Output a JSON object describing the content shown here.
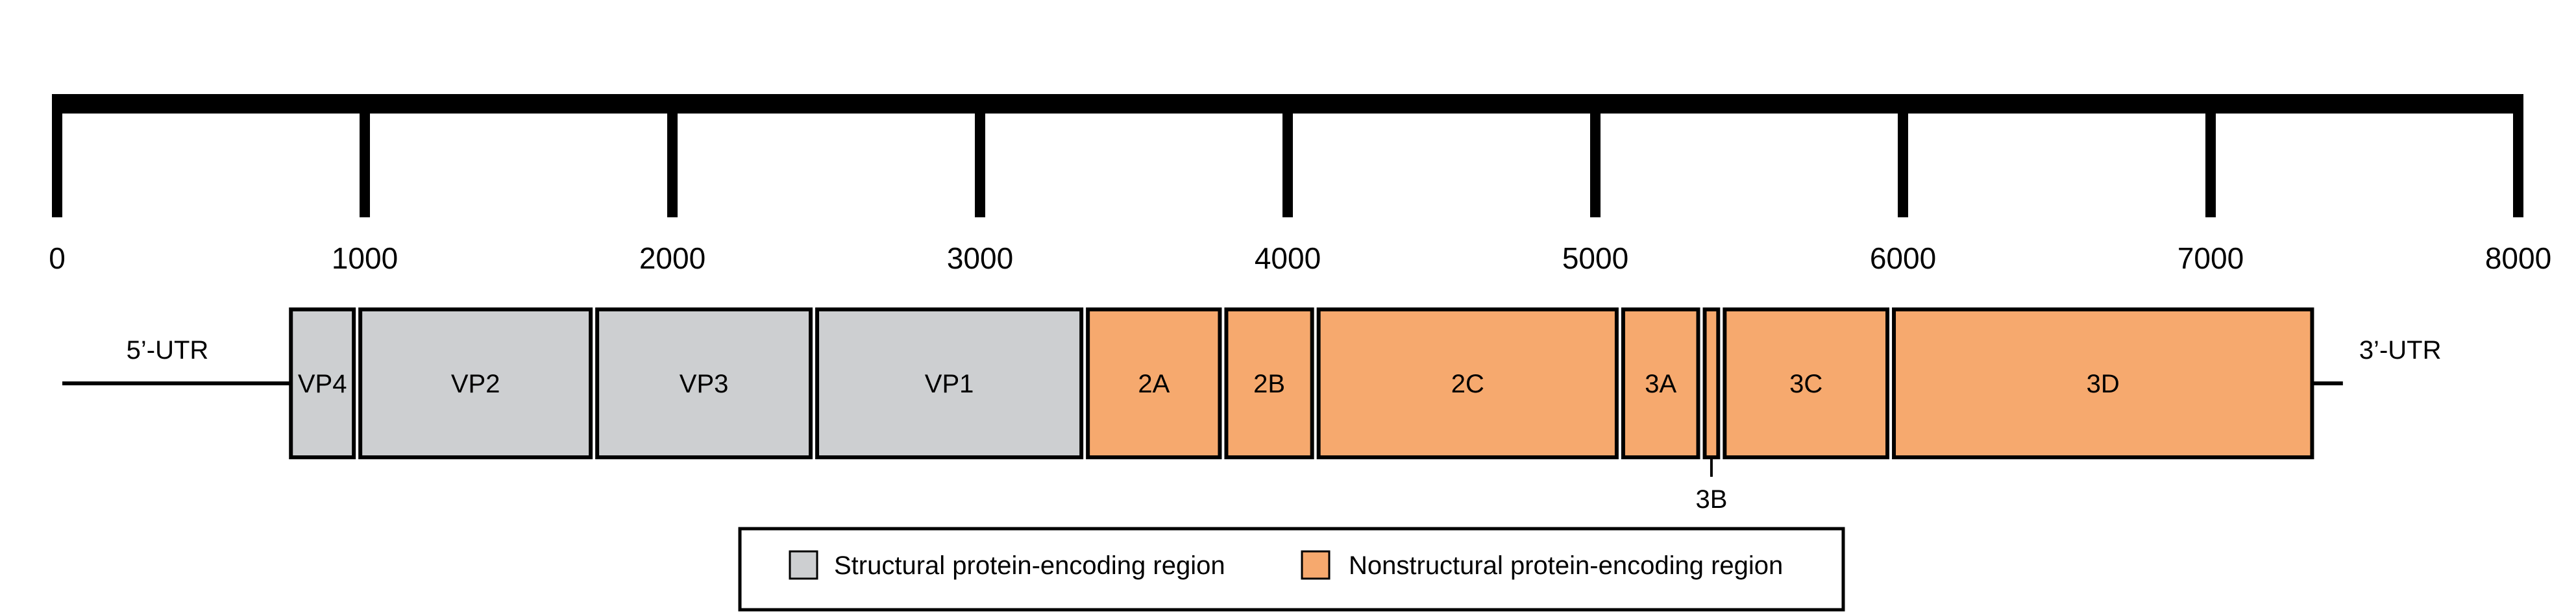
{
  "ruler": {
    "min": 0,
    "max": 8000,
    "step": 1000,
    "ticks": [
      "0",
      "1000",
      "2000",
      "3000",
      "4000",
      "5000",
      "6000",
      "7000",
      "8000"
    ]
  },
  "utr5": {
    "label": "5’-UTR",
    "start": 0,
    "end": 760
  },
  "utr3": {
    "label": "3’-UTR",
    "start": 7330,
    "end": 7430
  },
  "segments": [
    {
      "name": "VP4",
      "start": 760,
      "end": 975,
      "type": "structural"
    },
    {
      "name": "VP2",
      "start": 975,
      "end": 1745,
      "type": "structural"
    },
    {
      "name": "VP3",
      "start": 1745,
      "end": 2460,
      "type": "structural"
    },
    {
      "name": "VP1",
      "start": 2460,
      "end": 3340,
      "type": "structural"
    },
    {
      "name": "2A",
      "start": 3340,
      "end": 3790,
      "type": "nonstructural"
    },
    {
      "name": "2B",
      "start": 3790,
      "end": 4090,
      "type": "nonstructural"
    },
    {
      "name": "2C",
      "start": 4090,
      "end": 5080,
      "type": "nonstructural"
    },
    {
      "name": "3A",
      "start": 5080,
      "end": 5345,
      "type": "nonstructural"
    },
    {
      "name": "3B",
      "start": 5345,
      "end": 5410,
      "type": "nonstructural",
      "label_below": true
    },
    {
      "name": "3C",
      "start": 5410,
      "end": 5960,
      "type": "nonstructural"
    },
    {
      "name": "3D",
      "start": 5960,
      "end": 7330,
      "type": "nonstructural"
    }
  ],
  "colors": {
    "structural": "#cdcfd1",
    "nonstructural": "#f6a96e",
    "outline": "#000000"
  },
  "legend": {
    "items": [
      {
        "label": "Structural protein-encoding region",
        "type": "structural"
      },
      {
        "label": "Nonstructural protein-encoding region",
        "type": "nonstructural"
      }
    ]
  }
}
